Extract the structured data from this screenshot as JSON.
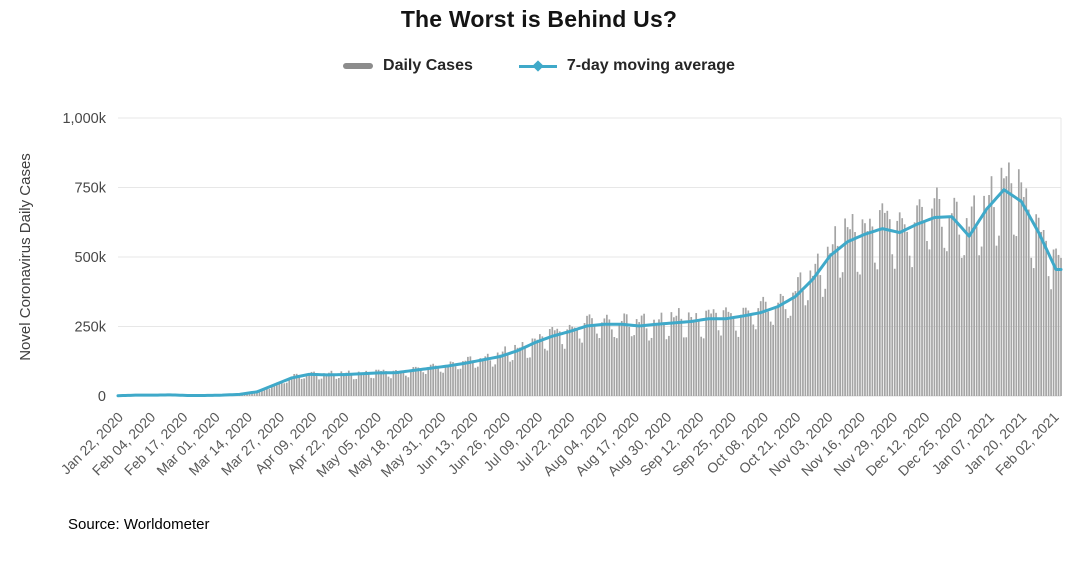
{
  "title": "The Worst is Behind Us?",
  "legend": {
    "daily_cases_label": "Daily Cases",
    "ma_label": "7-day moving average"
  },
  "source": "Source: Worldometer",
  "colors": {
    "bar": "#a4a4a4",
    "bar_legend_swatch": "#8c8c8c",
    "ma_line": "#3fa9c9",
    "grid": "#e7e7e7",
    "baseline": "#dcdcdc",
    "tick_text": "#595959",
    "y_tick_text": "#474747",
    "axis_title_text": "#3f3f3f",
    "title_text": "#141414"
  },
  "chart_data": {
    "type": "bar",
    "title": "The Worst is Behind Us?",
    "xlabel": "",
    "ylabel": "Novel Coronavirus Daily Cases",
    "ylim": [
      0,
      1000000
    ],
    "grid": true,
    "legend_position": "top",
    "y_ticks": [
      "0",
      "250k",
      "500k",
      "750k",
      "1,000k"
    ],
    "y_tick_values_k": [
      0,
      250,
      500,
      750,
      1000
    ],
    "x_tick_labels": [
      "Jan 22, 2020",
      "Feb 04, 2020",
      "Feb 17, 2020",
      "Mar 01, 2020",
      "Mar 14, 2020",
      "Mar 27, 2020",
      "Apr 09, 2020",
      "Apr 22, 2020",
      "May 05, 2020",
      "May 18, 2020",
      "May 31, 2020",
      "Jun 13, 2020",
      "Jun 26, 2020",
      "Jul 09, 2020",
      "Jul 22, 2020",
      "Aug 04, 2020",
      "Aug 17, 2020",
      "Aug 30, 2020",
      "Sep 12, 2020",
      "Sep 25, 2020",
      "Oct 08, 2020",
      "Oct 21, 2020",
      "Nov 03, 2020",
      "Nov 16, 2020",
      "Nov 29, 2020",
      "Dec 12, 2020",
      "Dec 25, 2020",
      "Jan 07, 2021",
      "Jan 20, 2021",
      "Feb 02, 2021"
    ],
    "x_tick_interval_days": 13,
    "start_date": "2020-01-22",
    "total_days": 381,
    "series": [
      {
        "name": "Daily Cases",
        "type": "bar",
        "note": "daily bars oscillate around the 7-day moving average with a weekly pattern",
        "weekly_pattern": [
          1.08,
          1.1,
          1.12,
          1.0,
          0.82,
          0.8,
          1.08
        ],
        "max_bar_k": 840
      },
      {
        "name": "7-day moving average",
        "type": "line",
        "sample_interval_days": 7,
        "values_k": [
          1,
          3,
          3,
          4,
          2,
          2,
          3,
          6,
          15,
          40,
          65,
          78,
          76,
          77,
          80,
          83,
          84,
          92,
          100,
          108,
          118,
          130,
          142,
          163,
          192,
          215,
          232,
          252,
          258,
          258,
          252,
          258,
          263,
          268,
          278,
          278,
          288,
          300,
          322,
          358,
          420,
          505,
          555,
          582,
          602,
          588,
          618,
          642,
          645,
          575,
          672,
          742,
          700,
          588,
          455
        ]
      }
    ]
  }
}
